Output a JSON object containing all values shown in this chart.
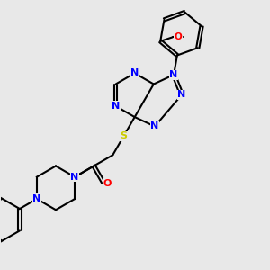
{
  "background_color": "#e8e8e8",
  "atom_colors": {
    "N": "#0000ff",
    "O": "#ff0000",
    "S": "#cccc00",
    "C": "#000000"
  },
  "bond_color": "#000000",
  "figsize": [
    3.0,
    3.0
  ],
  "dpi": 100
}
